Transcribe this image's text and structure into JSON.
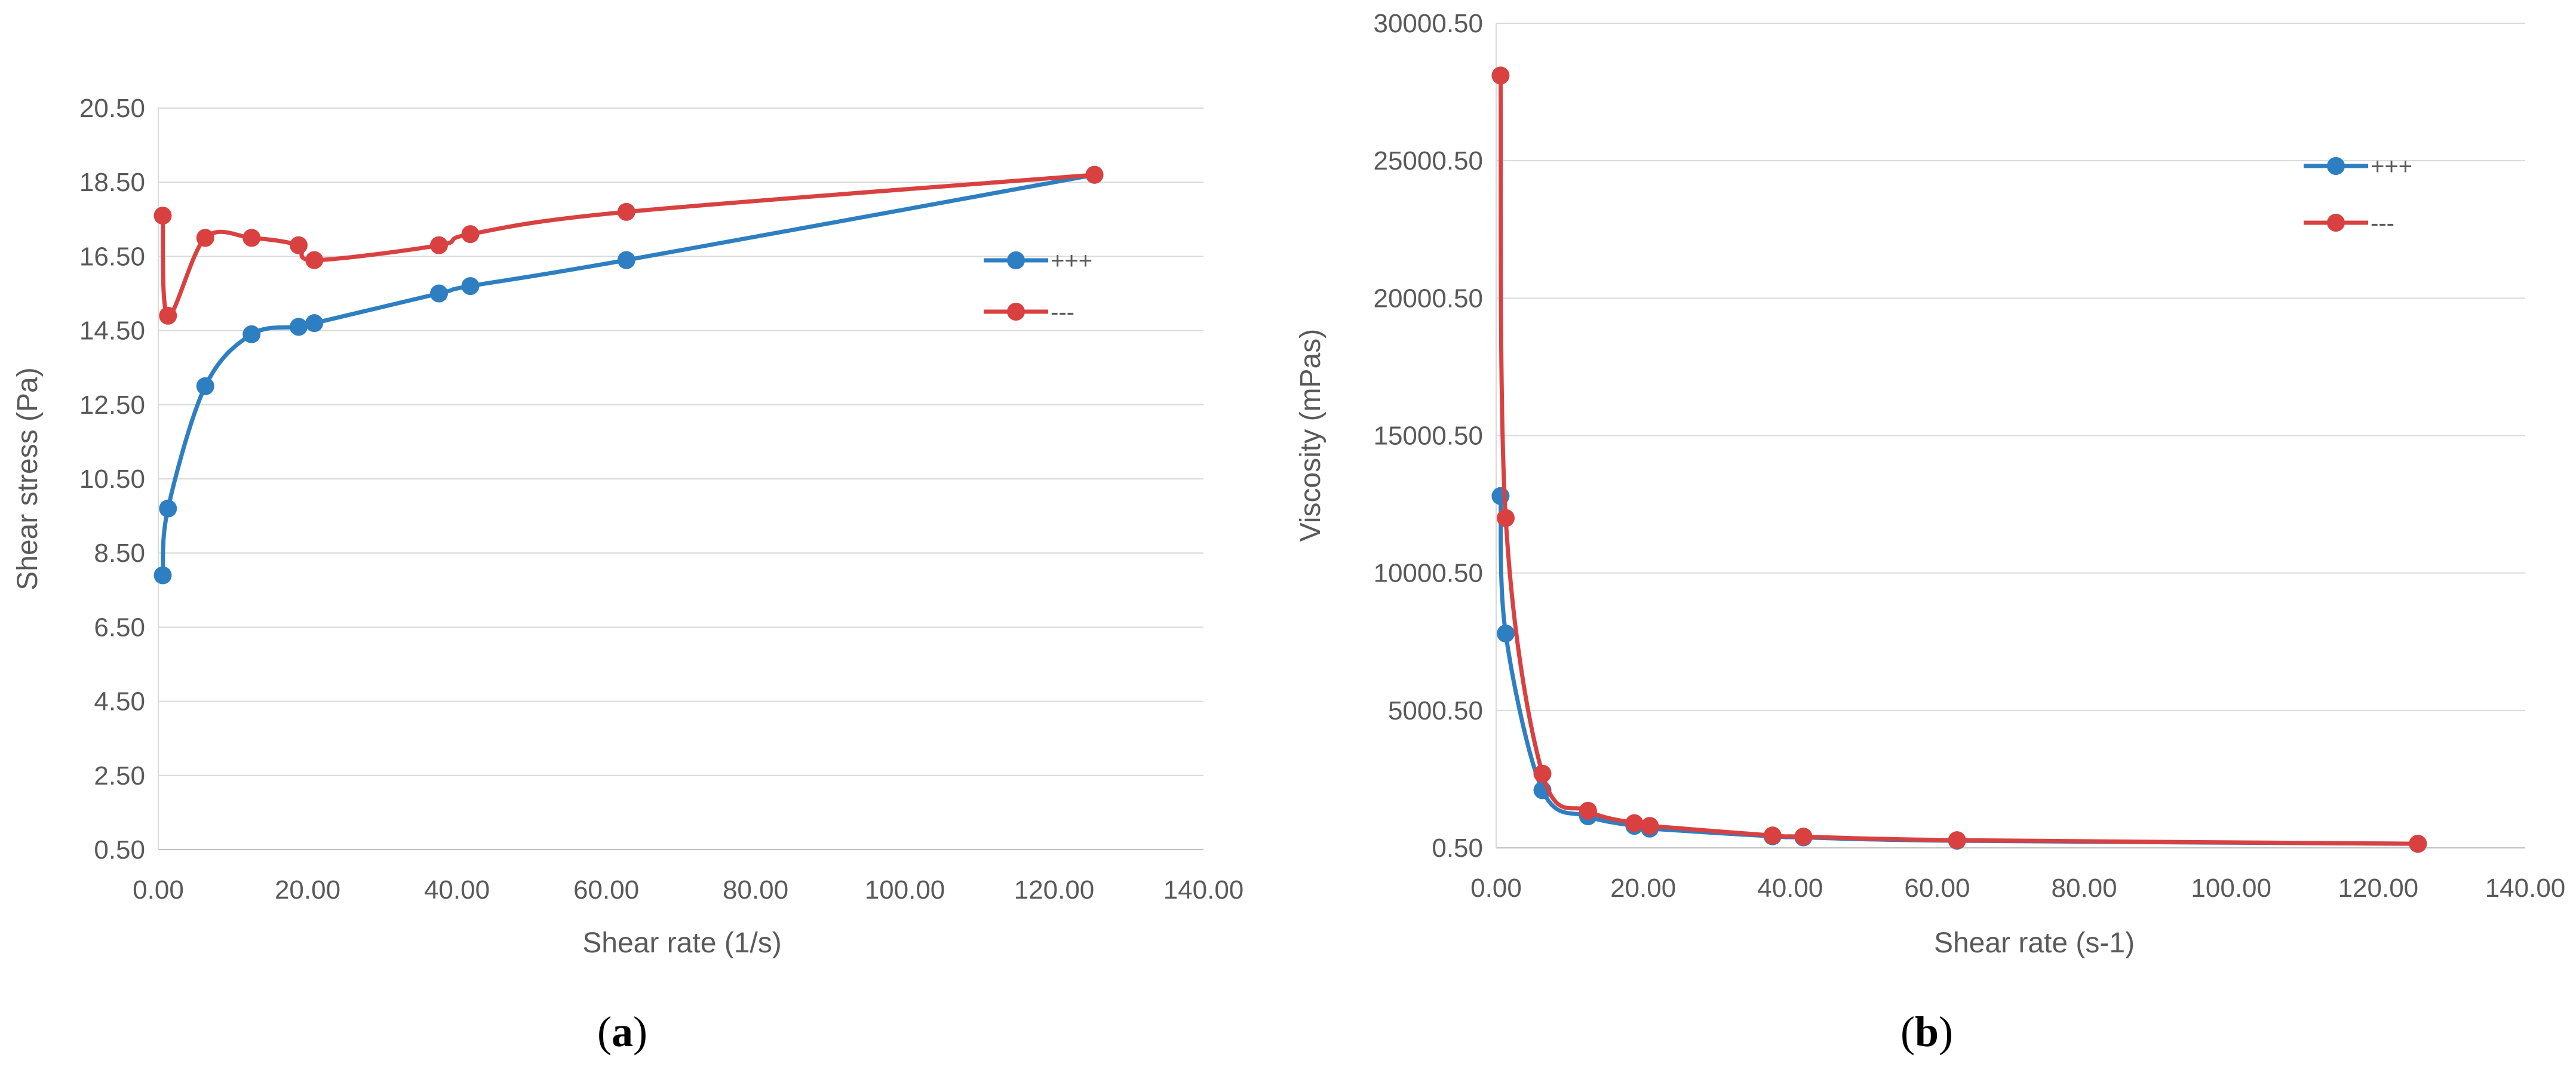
{
  "chart_data": [
    {
      "type": "line",
      "panel_label": {
        "open": "(",
        "letter": "a",
        "close": ")"
      },
      "title": "",
      "xlabel": "Shear rate (1/s)",
      "ylabel": "Shear stress (Pa)",
      "xlim": [
        0,
        140
      ],
      "ylim": [
        0.5,
        20.5
      ],
      "xticks": [
        "0.00",
        "20.00",
        "40.00",
        "60.00",
        "80.00",
        "100.00",
        "120.00",
        "140.00"
      ],
      "yticks": [
        "0.50",
        "2.50",
        "4.50",
        "6.50",
        "8.50",
        "10.50",
        "12.50",
        "14.50",
        "16.50",
        "18.50",
        "20.50"
      ],
      "grid": "horizontal",
      "legend_position": "right",
      "series": [
        {
          "name": "+++",
          "color": "#2e7fc1",
          "points": [
            [
              0.6,
              7.9
            ],
            [
              1.3,
              9.7
            ],
            [
              6.3,
              13.0
            ],
            [
              12.5,
              14.4
            ],
            [
              18.8,
              14.6
            ],
            [
              20.9,
              14.7
            ],
            [
              37.6,
              15.5
            ],
            [
              41.8,
              15.7
            ],
            [
              62.7,
              16.4
            ],
            [
              125.4,
              18.7
            ]
          ]
        },
        {
          "name": "---",
          "color": "#d94141",
          "points": [
            [
              0.6,
              17.6
            ],
            [
              1.3,
              14.9
            ],
            [
              6.3,
              17.0
            ],
            [
              12.5,
              17.0
            ],
            [
              18.8,
              16.8
            ],
            [
              20.9,
              16.4
            ],
            [
              37.6,
              16.8
            ],
            [
              41.8,
              17.1
            ],
            [
              62.7,
              17.7
            ],
            [
              125.4,
              18.7
            ]
          ]
        }
      ]
    },
    {
      "type": "line",
      "panel_label": {
        "open": "(",
        "letter": "b",
        "close": ")"
      },
      "title": "",
      "xlabel": "Shear rate (s-1)",
      "ylabel": "Viscosity (mPas)",
      "xlim": [
        0,
        140
      ],
      "ylim": [
        0.5,
        30000.5
      ],
      "xticks": [
        "0.00",
        "20.00",
        "40.00",
        "60.00",
        "80.00",
        "100.00",
        "120.00",
        "140.00"
      ],
      "yticks": [
        "0.50",
        "5000.50",
        "10000.50",
        "15000.50",
        "20000.50",
        "25000.50",
        "30000.50"
      ],
      "grid": "horizontal",
      "legend_position": "top-right",
      "series": [
        {
          "name": "+++",
          "color": "#2e7fc1",
          "points": [
            [
              0.6,
              12800
            ],
            [
              1.3,
              7800
            ],
            [
              6.3,
              2100
            ],
            [
              12.5,
              1150
            ],
            [
              18.8,
              800
            ],
            [
              20.9,
              700
            ],
            [
              37.6,
              420
            ],
            [
              41.8,
              380
            ],
            [
              62.7,
              260
            ],
            [
              125.4,
              150
            ]
          ]
        },
        {
          "name": "---",
          "color": "#d94141",
          "points": [
            [
              0.6,
              28100
            ],
            [
              1.3,
              12000
            ],
            [
              6.3,
              2700
            ],
            [
              12.5,
              1350
            ],
            [
              18.8,
              900
            ],
            [
              20.9,
              800
            ],
            [
              37.6,
              450
            ],
            [
              41.8,
              410
            ],
            [
              62.7,
              280
            ],
            [
              125.4,
              150
            ]
          ]
        }
      ]
    }
  ]
}
